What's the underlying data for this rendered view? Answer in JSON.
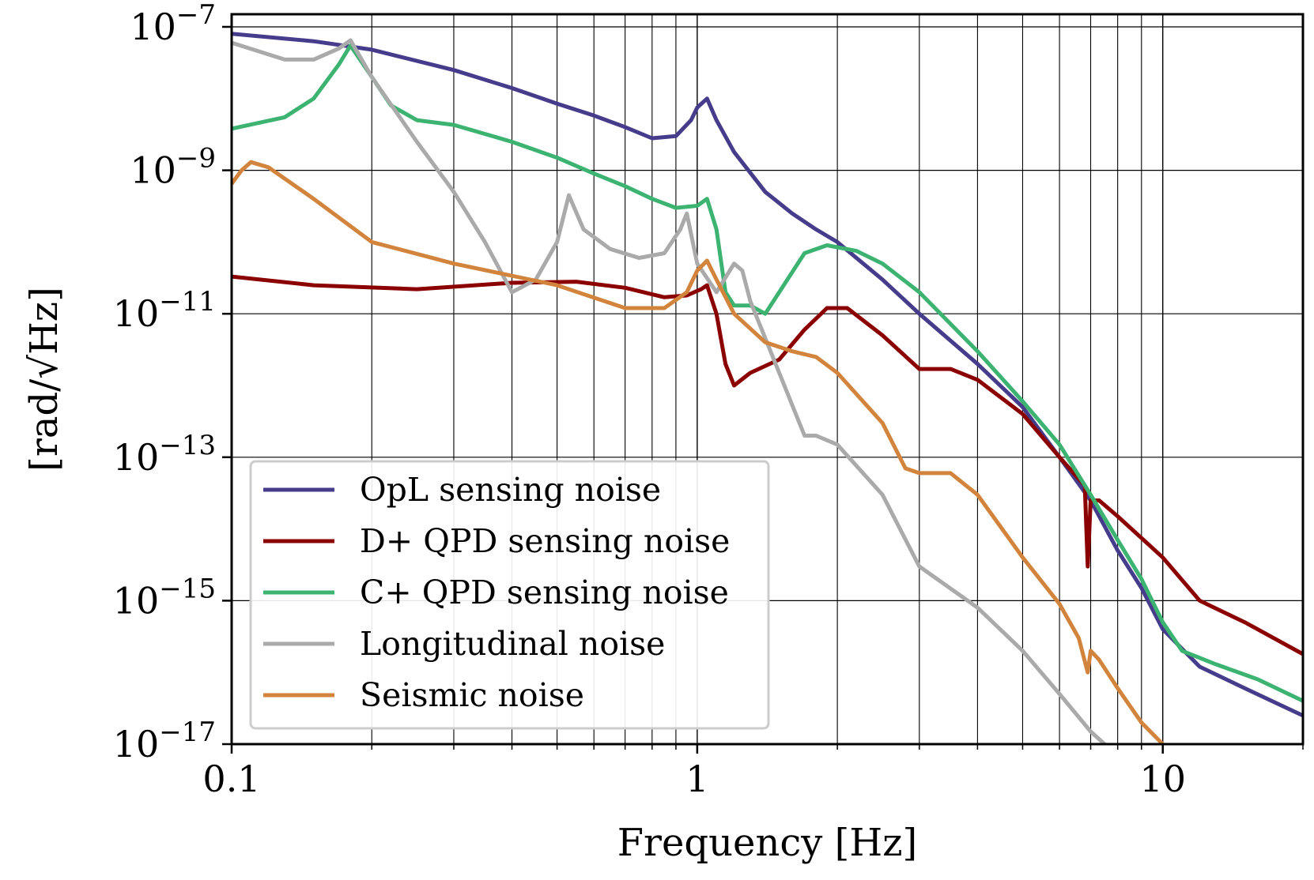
{
  "chart_data": {
    "type": "line",
    "xscale": "log",
    "yscale": "log",
    "xlabel": "Frequency [Hz]",
    "ylabel": "[rad/√Hz]",
    "xlim": [
      0.1,
      20
    ],
    "ylim": [
      1e-17,
      1.5e-07
    ],
    "xticks": [
      {
        "value": 0.1,
        "label": "0.1"
      },
      {
        "value": 1,
        "label": "1"
      },
      {
        "value": 10,
        "label": "10"
      }
    ],
    "yticks": [
      {
        "value": 1e-07,
        "base": "10",
        "exp": "−7"
      },
      {
        "value": 1e-09,
        "base": "10",
        "exp": "−9"
      },
      {
        "value": 1e-11,
        "base": "10",
        "exp": "−11"
      },
      {
        "value": 1e-13,
        "base": "10",
        "exp": "−13"
      },
      {
        "value": 1e-15,
        "base": "10",
        "exp": "−15"
      },
      {
        "value": 1e-17,
        "base": "10",
        "exp": "−17"
      }
    ],
    "grid": true,
    "legend_position": "bottom-left",
    "series": [
      {
        "name": "OpL sensing noise",
        "color": "#463c8c",
        "points": [
          [
            0.1,
            8e-08
          ],
          [
            0.15,
            6.3e-08
          ],
          [
            0.2,
            4.8e-08
          ],
          [
            0.3,
            2.5e-08
          ],
          [
            0.4,
            1.4e-08
          ],
          [
            0.5,
            8.5e-09
          ],
          [
            0.6,
            5.8e-09
          ],
          [
            0.7,
            4e-09
          ],
          [
            0.8,
            2.8e-09
          ],
          [
            0.9,
            3e-09
          ],
          [
            0.97,
            5e-09
          ],
          [
            1.0,
            7.5e-09
          ],
          [
            1.05,
            1e-08
          ],
          [
            1.1,
            5e-09
          ],
          [
            1.2,
            1.8e-09
          ],
          [
            1.4,
            5e-10
          ],
          [
            1.6,
            2.5e-10
          ],
          [
            1.8,
            1.5e-10
          ],
          [
            2.0,
            1e-10
          ],
          [
            2.5,
            3e-11
          ],
          [
            3.0,
            1e-11
          ],
          [
            4.0,
            2e-12
          ],
          [
            5.0,
            5e-13
          ],
          [
            6.0,
            1e-13
          ],
          [
            7.0,
            2.5e-14
          ],
          [
            8.0,
            5e-15
          ],
          [
            9.0,
            1.5e-15
          ],
          [
            10.0,
            4e-16
          ],
          [
            12.0,
            1.2e-16
          ],
          [
            15.0,
            6e-17
          ],
          [
            20.0,
            2.5e-17
          ]
        ]
      },
      {
        "name": "D+ QPD sensing noise",
        "color": "#8b0000",
        "points": [
          [
            0.1,
            3.3e-11
          ],
          [
            0.15,
            2.5e-11
          ],
          [
            0.25,
            2.2e-11
          ],
          [
            0.4,
            2.7e-11
          ],
          [
            0.55,
            2.8e-11
          ],
          [
            0.7,
            2.3e-11
          ],
          [
            0.85,
            1.7e-11
          ],
          [
            0.95,
            1.8e-11
          ],
          [
            1.02,
            2.2e-11
          ],
          [
            1.05,
            2.5e-11
          ],
          [
            1.1,
            1e-11
          ],
          [
            1.15,
            2e-12
          ],
          [
            1.2,
            1e-12
          ],
          [
            1.3,
            1.5e-12
          ],
          [
            1.5,
            2.3e-12
          ],
          [
            1.7,
            6e-12
          ],
          [
            1.9,
            1.2e-11
          ],
          [
            2.1,
            1.2e-11
          ],
          [
            2.5,
            5e-12
          ],
          [
            3.0,
            1.7e-12
          ],
          [
            3.5,
            1.7e-12
          ],
          [
            4.0,
            1.2e-12
          ],
          [
            5.0,
            4e-13
          ],
          [
            6.0,
            1e-13
          ],
          [
            6.8,
            4e-14
          ],
          [
            6.9,
            3e-15
          ],
          [
            7.0,
            2.5e-14
          ],
          [
            7.3,
            2.5e-14
          ],
          [
            8.0,
            1.5e-14
          ],
          [
            10.0,
            4e-15
          ],
          [
            12.0,
            1e-15
          ],
          [
            15.0,
            5e-16
          ],
          [
            20.0,
            1.8e-16
          ]
        ]
      },
      {
        "name": "C+ QPD sensing noise",
        "color": "#3cb371",
        "points": [
          [
            0.1,
            3.8e-09
          ],
          [
            0.13,
            5.5e-09
          ],
          [
            0.15,
            1e-08
          ],
          [
            0.17,
            3e-08
          ],
          [
            0.18,
            5.5e-08
          ],
          [
            0.2,
            2e-08
          ],
          [
            0.22,
            8e-09
          ],
          [
            0.25,
            5e-09
          ],
          [
            0.3,
            4.3e-09
          ],
          [
            0.4,
            2.5e-09
          ],
          [
            0.5,
            1.5e-09
          ],
          [
            0.6,
            9e-10
          ],
          [
            0.7,
            6e-10
          ],
          [
            0.8,
            4e-10
          ],
          [
            0.9,
            3e-10
          ],
          [
            1.0,
            3.2e-10
          ],
          [
            1.05,
            4e-10
          ],
          [
            1.1,
            1.5e-10
          ],
          [
            1.15,
            2e-11
          ],
          [
            1.2,
            1.3e-11
          ],
          [
            1.3,
            1.3e-11
          ],
          [
            1.4,
            1e-11
          ],
          [
            1.5,
            2e-11
          ],
          [
            1.7,
            7e-11
          ],
          [
            1.9,
            9e-11
          ],
          [
            2.2,
            7.5e-11
          ],
          [
            2.5,
            5e-11
          ],
          [
            3.0,
            2e-11
          ],
          [
            4.0,
            3e-12
          ],
          [
            5.0,
            6e-13
          ],
          [
            6.0,
            1.5e-13
          ],
          [
            7.0,
            3e-14
          ],
          [
            8.0,
            7e-15
          ],
          [
            9.0,
            2e-15
          ],
          [
            10.0,
            5e-16
          ],
          [
            11.0,
            2e-16
          ],
          [
            13.0,
            1.3e-16
          ],
          [
            16.0,
            8e-17
          ],
          [
            20.0,
            4e-17
          ]
        ]
      },
      {
        "name": "Longitudinal noise",
        "color": "#aaaaaa",
        "points": [
          [
            0.1,
            6e-08
          ],
          [
            0.13,
            3.5e-08
          ],
          [
            0.15,
            3.5e-08
          ],
          [
            0.17,
            5e-08
          ],
          [
            0.18,
            6.5e-08
          ],
          [
            0.2,
            2e-08
          ],
          [
            0.25,
            2.5e-09
          ],
          [
            0.3,
            5e-10
          ],
          [
            0.35,
            1e-10
          ],
          [
            0.4,
            2e-11
          ],
          [
            0.45,
            3e-11
          ],
          [
            0.5,
            1e-10
          ],
          [
            0.53,
            4.5e-10
          ],
          [
            0.57,
            1.5e-10
          ],
          [
            0.65,
            8e-11
          ],
          [
            0.75,
            6e-11
          ],
          [
            0.85,
            7e-11
          ],
          [
            0.92,
            1.5e-10
          ],
          [
            0.95,
            2.5e-10
          ],
          [
            1.0,
            5e-11
          ],
          [
            1.1,
            2e-11
          ],
          [
            1.2,
            5e-11
          ],
          [
            1.25,
            4e-11
          ],
          [
            1.3,
            1.5e-11
          ],
          [
            1.5,
            1.5e-12
          ],
          [
            1.7,
            2e-13
          ],
          [
            1.8,
            2e-13
          ],
          [
            2.0,
            1.5e-13
          ],
          [
            2.5,
            3e-14
          ],
          [
            3.0,
            3e-15
          ],
          [
            4.0,
            8e-16
          ],
          [
            5.0,
            2e-16
          ],
          [
            6.0,
            5e-17
          ],
          [
            7.0,
            1.5e-17
          ],
          [
            7.5,
            1e-17
          ]
        ]
      },
      {
        "name": "Seismic noise",
        "color": "#d2843c",
        "points": [
          [
            0.1,
            6.5e-10
          ],
          [
            0.105,
            1e-09
          ],
          [
            0.11,
            1.3e-09
          ],
          [
            0.12,
            1.1e-09
          ],
          [
            0.15,
            4e-10
          ],
          [
            0.2,
            1e-10
          ],
          [
            0.3,
            5e-11
          ],
          [
            0.5,
            2.5e-11
          ],
          [
            0.7,
            1.2e-11
          ],
          [
            0.85,
            1.2e-11
          ],
          [
            0.95,
            2e-11
          ],
          [
            1.0,
            4e-11
          ],
          [
            1.05,
            5.5e-11
          ],
          [
            1.1,
            3e-11
          ],
          [
            1.2,
            1e-11
          ],
          [
            1.4,
            4e-12
          ],
          [
            1.6,
            3e-12
          ],
          [
            1.8,
            2.5e-12
          ],
          [
            2.0,
            1.5e-12
          ],
          [
            2.5,
            3e-13
          ],
          [
            2.8,
            7e-14
          ],
          [
            3.0,
            6e-14
          ],
          [
            3.5,
            6e-14
          ],
          [
            4.0,
            3e-14
          ],
          [
            5.0,
            4e-15
          ],
          [
            6.0,
            9e-16
          ],
          [
            6.6,
            3e-16
          ],
          [
            6.9,
            1e-16
          ],
          [
            7.0,
            2e-16
          ],
          [
            7.3,
            1.5e-16
          ],
          [
            8.0,
            6e-17
          ],
          [
            9.0,
            2e-17
          ],
          [
            10.0,
            1e-17
          ]
        ]
      }
    ]
  }
}
